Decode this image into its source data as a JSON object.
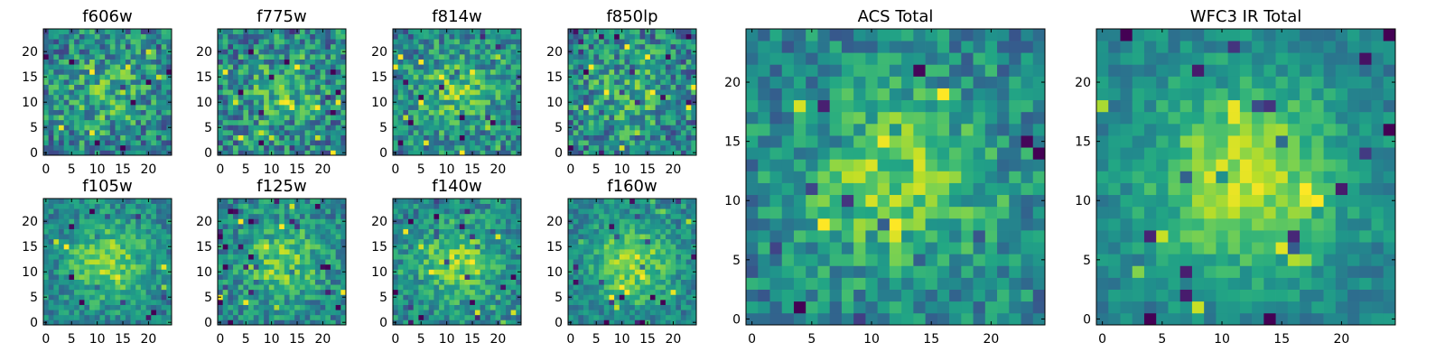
{
  "colormap": "viridis",
  "panels": [
    {
      "id": "f606w",
      "title": "f606w",
      "seed": 11,
      "peak": 0.35,
      "noise": 0.55
    },
    {
      "id": "f775w",
      "title": "f775w",
      "seed": 23,
      "peak": 0.35,
      "noise": 0.55
    },
    {
      "id": "f814w",
      "title": "f814w",
      "seed": 37,
      "peak": 0.45,
      "noise": 0.5
    },
    {
      "id": "f850lp",
      "title": "f850lp",
      "seed": 41,
      "peak": 0.3,
      "noise": 0.55
    },
    {
      "id": "f105w",
      "title": "f105w",
      "seed": 53,
      "peak": 0.6,
      "noise": 0.35
    },
    {
      "id": "f125w",
      "title": "f125w",
      "seed": 67,
      "peak": 0.55,
      "noise": 0.4
    },
    {
      "id": "f140w",
      "title": "f140w",
      "seed": 71,
      "peak": 0.6,
      "noise": 0.38
    },
    {
      "id": "f160w",
      "title": "f160w",
      "seed": 83,
      "peak": 0.65,
      "noise": 0.32
    },
    {
      "id": "acs-total",
      "title": "ACS Total",
      "seed": 97,
      "peak": 0.55,
      "noise": 0.4
    },
    {
      "id": "wfc3-total",
      "title": "WFC3 IR Total",
      "seed": 101,
      "peak": 0.75,
      "noise": 0.25
    }
  ],
  "grid": {
    "nx": 25,
    "ny": 25
  },
  "small_ticks": {
    "x": [
      "0",
      "5",
      "10",
      "15",
      "20"
    ],
    "y": [
      "0",
      "5",
      "10",
      "15",
      "20"
    ]
  },
  "large_ticks": {
    "x": [
      "0",
      "5",
      "10",
      "15",
      "20"
    ],
    "y": [
      "0",
      "5",
      "10",
      "15",
      "20"
    ]
  }
}
